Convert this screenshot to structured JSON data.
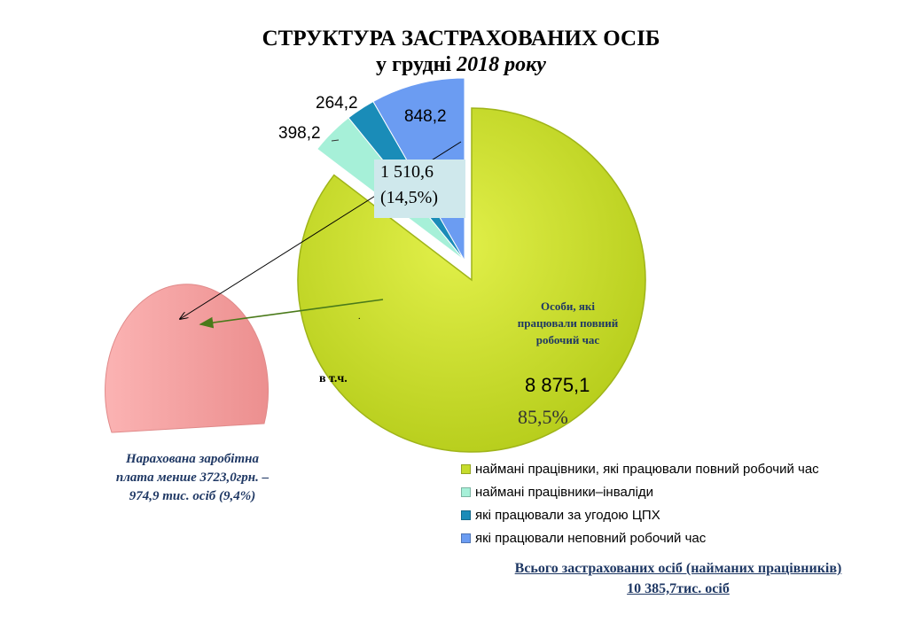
{
  "title": "СТРУКТУРА ЗАСТРАХОВАНИХ ОСІБ",
  "subtitle_prefix": "у грудні ",
  "subtitle_year": "2018 року",
  "chart_data": {
    "type": "pie",
    "title": "СТРУКТУРА ЗАСТРАХОВАНИХ ОСІБ у грудні 2018 року",
    "unit": "тис. осіб",
    "slices": [
      {
        "name": "наймані працівники, які працювали повний робочий час",
        "value": 8875.1,
        "label": "8 875,1",
        "percent_label": "85,5%",
        "color": "#c6dc2c"
      },
      {
        "name": "наймані працівники–інваліди",
        "value": 398.2,
        "label": "398,2",
        "color": "#a6f0d8"
      },
      {
        "name": "які працювали за угодою ЦПХ",
        "value": 264.2,
        "label": "264,2",
        "color": "#1a8cb8"
      },
      {
        "name": "які працювали неповний робочий час",
        "value": 848.2,
        "label": "848,2",
        "color": "#6b9cf2"
      }
    ],
    "exploded_group": {
      "value": 1510.6,
      "label": "1 510,6",
      "percent_label": "(14,5%)"
    },
    "sub_chart": {
      "value": 974.9,
      "percent": 9.4,
      "color": "#f19a9a"
    }
  },
  "inner_label": [
    "Особи, які",
    "працювали повний",
    "робочий час"
  ],
  "vtch": "в т.ч.",
  "dot": ".",
  "low_note": [
    "Нарахована заробітна",
    "плата менше 3723,0грн. –",
    "974,9 тис. осіб (9,4%)"
  ],
  "total": [
    "Всього застрахованих  осіб (найманих працівників)",
    "10 385,7тис. осіб"
  ]
}
